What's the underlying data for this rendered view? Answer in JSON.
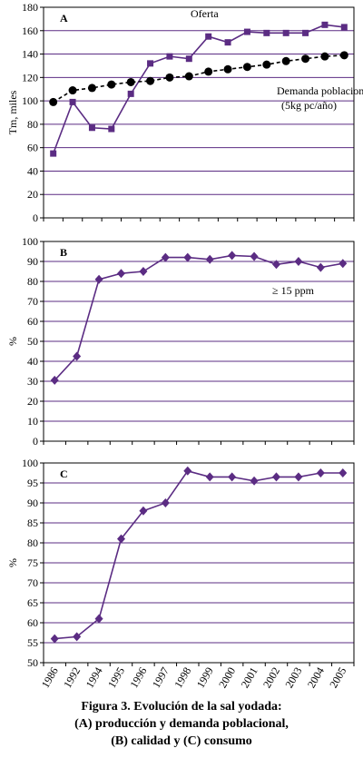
{
  "chart_data": [
    {
      "type": "line",
      "label": "A",
      "ylabel": "Tm, miles",
      "categories": [
        null,
        null,
        null,
        null,
        null,
        null,
        null,
        null,
        null,
        null,
        null,
        null,
        null,
        null,
        null,
        null
      ],
      "series": [
        {
          "name": "Oferta",
          "color": "#5b2c83",
          "marker": "square",
          "dashed": false,
          "values": [
            55,
            99,
            77,
            76,
            106,
            132,
            138,
            136,
            155,
            150,
            159,
            158,
            158,
            158,
            165,
            163
          ]
        },
        {
          "name": "Demanda poblacional",
          "color": "#000000",
          "marker": "circle",
          "dashed": true,
          "values": [
            99,
            109,
            111,
            114,
            116,
            117,
            120,
            121,
            125,
            127,
            129,
            131,
            134,
            136,
            138,
            139
          ]
        }
      ],
      "annotations": [
        "(5kg pc/año)"
      ],
      "ylim": [
        0,
        180
      ],
      "yticks": [
        0,
        20,
        40,
        60,
        80,
        100,
        120,
        140,
        160,
        180
      ],
      "grid": true
    },
    {
      "type": "line",
      "label": "B",
      "ylabel": "%",
      "categories": [
        null,
        null,
        null,
        null,
        null,
        null,
        null,
        null,
        null,
        null,
        null,
        null,
        null,
        null
      ],
      "series": [
        {
          "color": "#5b2c83",
          "marker": "diamond",
          "dashed": false,
          "values": [
            30.5,
            42.5,
            81,
            84,
            85,
            92,
            92,
            91,
            93,
            92.5,
            88.5,
            90,
            87,
            89
          ]
        }
      ],
      "annotations": [
        "≥ 15 ppm"
      ],
      "ylim": [
        0,
        100
      ],
      "yticks": [
        0,
        10,
        20,
        30,
        40,
        50,
        60,
        70,
        80,
        90,
        100
      ],
      "grid": true
    },
    {
      "type": "line",
      "label": "C",
      "ylabel": "%",
      "categories": [
        "1986",
        "1992",
        "1994",
        "1995",
        "1996",
        "1997",
        "1998",
        "1999",
        "2000",
        "2001",
        "2002",
        "2003",
        "2004",
        "2005"
      ],
      "series": [
        {
          "color": "#5b2c83",
          "marker": "diamond",
          "dashed": false,
          "values": [
            56,
            56.5,
            61,
            81,
            88,
            90,
            98,
            96.5,
            96.5,
            95.5,
            96.5,
            96.5,
            97.5,
            97.5
          ]
        }
      ],
      "ylim": [
        50,
        100
      ],
      "yticks": [
        50,
        55,
        60,
        65,
        70,
        75,
        80,
        85,
        90,
        95,
        100
      ],
      "grid": true
    }
  ],
  "caption": [
    "Figura 3.  Evolución de la sal yodada:",
    "(A) producción y demanda poblacional,",
    "(B) calidad y (C) consumo"
  ]
}
